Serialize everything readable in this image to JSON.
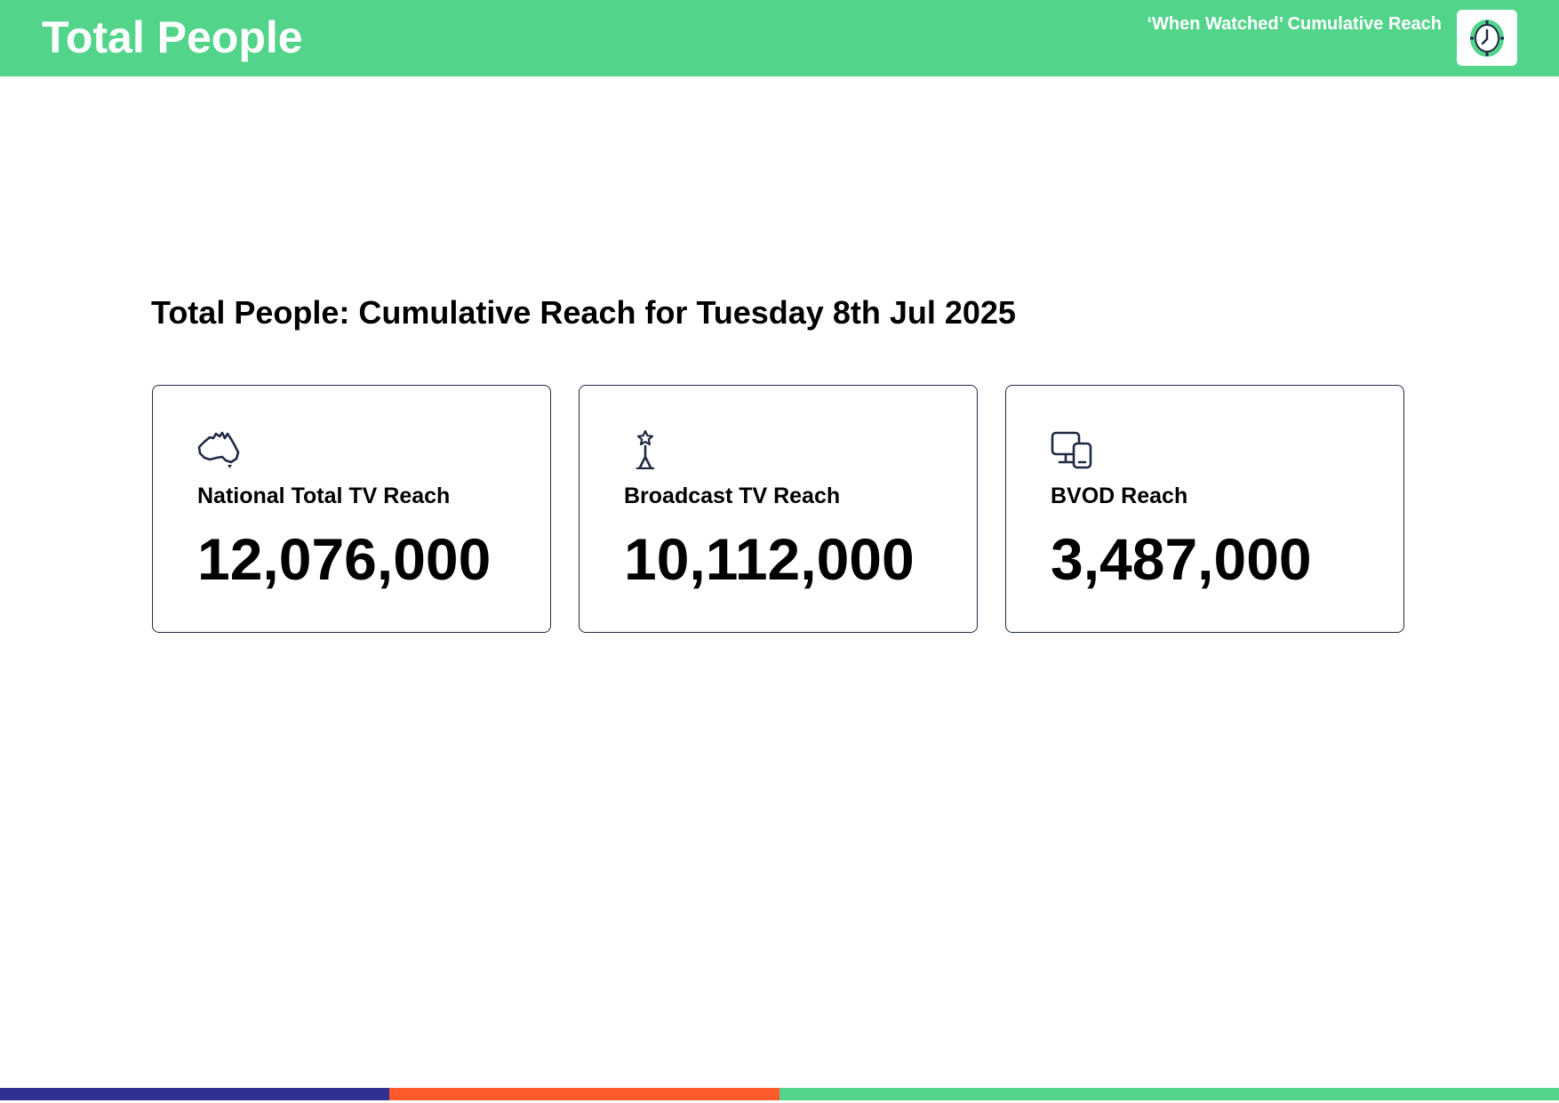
{
  "header": {
    "title": "Total People",
    "subtitle": "‘When Watched’ Cumulative Reach",
    "logo_icon": "clock-icon",
    "background_color": "#52d48b"
  },
  "main": {
    "heading": "Total People: Cumulative Reach for Tuesday 8th Jul 2025",
    "cards": [
      {
        "icon": "australia-map-icon",
        "label": "National Total TV Reach",
        "value": "12,076,000"
      },
      {
        "icon": "broadcast-tower-icon",
        "label": "Broadcast TV Reach",
        "value": "10,112,000"
      },
      {
        "icon": "devices-icon",
        "label": "BVOD Reach",
        "value": "3,487,000"
      }
    ]
  },
  "footer": {
    "bar_colors": [
      "#2e3192",
      "#ff5a2c",
      "#52d48b"
    ]
  }
}
